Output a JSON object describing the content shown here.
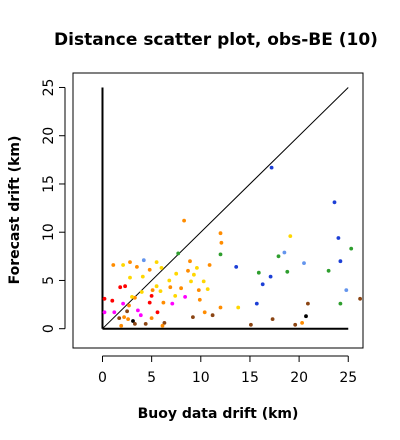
{
  "chart_data": {
    "type": "scatter",
    "title": "Distance scatter plot, obs-BE (10)",
    "xlabel": "Buoy data drift (km)",
    "ylabel": "Forecast drift (km)",
    "xlim": [
      -3,
      26.5
    ],
    "ylim": [
      -2,
      26.5
    ],
    "x_ticks": [
      "0",
      "5",
      "10",
      "15",
      "20",
      "25"
    ],
    "x_tick_values": [
      0,
      5,
      10,
      15,
      20,
      25
    ],
    "y_ticks": [
      "0",
      "5",
      "10",
      "15",
      "20",
      "25"
    ],
    "y_tick_values": [
      0,
      5,
      10,
      15,
      20,
      25
    ],
    "grid": false,
    "reference_lines": [
      {
        "kind": "diagonal",
        "from": [
          0,
          0
        ],
        "to": [
          25,
          25
        ],
        "color": "#000000"
      },
      {
        "kind": "vertical",
        "from": [
          0,
          0
        ],
        "to": [
          0,
          25
        ],
        "color": "#000000"
      },
      {
        "kind": "horizontal",
        "from": [
          0,
          0
        ],
        "to": [
          25,
          0
        ],
        "color": "#000000"
      }
    ],
    "points": [
      {
        "x": 17.2,
        "y": 16.7,
        "color": "#1c3fd6"
      },
      {
        "x": 23.6,
        "y": 13.1,
        "color": "#1c3fd6"
      },
      {
        "x": 24.0,
        "y": 9.4,
        "color": "#1c3fd6"
      },
      {
        "x": 24.2,
        "y": 7.0,
        "color": "#1c3fd6"
      },
      {
        "x": 25.3,
        "y": 8.3,
        "color": "#2e9e2e"
      },
      {
        "x": 23.0,
        "y": 6.0,
        "color": "#2e9e2e"
      },
      {
        "x": 24.8,
        "y": 4.0,
        "color": "#6495ed"
      },
      {
        "x": 24.2,
        "y": 2.6,
        "color": "#2e9e2e"
      },
      {
        "x": 20.5,
        "y": 6.8,
        "color": "#6495ed"
      },
      {
        "x": 19.1,
        "y": 9.6,
        "color": "#ffd700"
      },
      {
        "x": 18.5,
        "y": 7.9,
        "color": "#6495ed"
      },
      {
        "x": 17.9,
        "y": 7.5,
        "color": "#2e9e2e"
      },
      {
        "x": 18.8,
        "y": 5.9,
        "color": "#2e9e2e"
      },
      {
        "x": 16.3,
        "y": 4.6,
        "color": "#1c3fd6"
      },
      {
        "x": 15.9,
        "y": 5.8,
        "color": "#2e9e2e"
      },
      {
        "x": 17.1,
        "y": 5.4,
        "color": "#1c3fd6"
      },
      {
        "x": 15.7,
        "y": 2.6,
        "color": "#1c3fd6"
      },
      {
        "x": 13.6,
        "y": 6.4,
        "color": "#1c3fd6"
      },
      {
        "x": 13.8,
        "y": 2.2,
        "color": "#ffd700"
      },
      {
        "x": 12.0,
        "y": 9.9,
        "color": "#ff8c00"
      },
      {
        "x": 12.1,
        "y": 8.9,
        "color": "#ff8c00"
      },
      {
        "x": 12.0,
        "y": 7.7,
        "color": "#2e9e2e"
      },
      {
        "x": 10.9,
        "y": 6.6,
        "color": "#ff8c00"
      },
      {
        "x": 10.3,
        "y": 4.9,
        "color": "#ffd700"
      },
      {
        "x": 10.7,
        "y": 4.1,
        "color": "#ffd700"
      },
      {
        "x": 8.3,
        "y": 11.2,
        "color": "#ff8c00"
      },
      {
        "x": 7.7,
        "y": 7.8,
        "color": "#2e9e2e"
      },
      {
        "x": 8.9,
        "y": 7.0,
        "color": "#ff8c00"
      },
      {
        "x": 9.6,
        "y": 6.3,
        "color": "#ffd700"
      },
      {
        "x": 8.7,
        "y": 6.0,
        "color": "#ff8c00"
      },
      {
        "x": 7.5,
        "y": 5.7,
        "color": "#ffd700"
      },
      {
        "x": 6.8,
        "y": 5.0,
        "color": "#ffd700"
      },
      {
        "x": 9.3,
        "y": 5.6,
        "color": "#ffd700"
      },
      {
        "x": 9.0,
        "y": 4.9,
        "color": "#ffd700"
      },
      {
        "x": 8.0,
        "y": 4.2,
        "color": "#ff8c00"
      },
      {
        "x": 9.8,
        "y": 4.0,
        "color": "#ff8c00"
      },
      {
        "x": 7.4,
        "y": 3.4,
        "color": "#ffd700"
      },
      {
        "x": 8.4,
        "y": 3.3,
        "color": "#ff00ff"
      },
      {
        "x": 7.1,
        "y": 2.6,
        "color": "#ff00ff"
      },
      {
        "x": 9.9,
        "y": 3.0,
        "color": "#ff8c00"
      },
      {
        "x": 10.4,
        "y": 1.7,
        "color": "#ff8c00"
      },
      {
        "x": 9.2,
        "y": 1.2,
        "color": "#8b4513"
      },
      {
        "x": 11.2,
        "y": 1.4,
        "color": "#8b4513"
      },
      {
        "x": 6.0,
        "y": 6.3,
        "color": "#ffd700"
      },
      {
        "x": 5.5,
        "y": 6.9,
        "color": "#ffd700"
      },
      {
        "x": 4.8,
        "y": 6.1,
        "color": "#ff8c00"
      },
      {
        "x": 4.1,
        "y": 5.4,
        "color": "#ffd700"
      },
      {
        "x": 3.5,
        "y": 6.4,
        "color": "#ff8c00"
      },
      {
        "x": 4.2,
        "y": 7.1,
        "color": "#6495ed"
      },
      {
        "x": 2.8,
        "y": 6.9,
        "color": "#ff8c00"
      },
      {
        "x": 1.1,
        "y": 6.6,
        "color": "#ff8c00"
      },
      {
        "x": 2.1,
        "y": 6.6,
        "color": "#ffd700"
      },
      {
        "x": 2.8,
        "y": 5.3,
        "color": "#ffd700"
      },
      {
        "x": 5.5,
        "y": 4.4,
        "color": "#ffd700"
      },
      {
        "x": 6.9,
        "y": 4.3,
        "color": "#ff8c00"
      },
      {
        "x": 5.1,
        "y": 4.0,
        "color": "#ff8c00"
      },
      {
        "x": 4.0,
        "y": 3.8,
        "color": "#ffd700"
      },
      {
        "x": 3.3,
        "y": 3.2,
        "color": "#ff8c00"
      },
      {
        "x": 1.8,
        "y": 4.3,
        "color": "#ff0000"
      },
      {
        "x": 2.3,
        "y": 4.4,
        "color": "#ff0000"
      },
      {
        "x": 0.2,
        "y": 3.1,
        "color": "#ff0000"
      },
      {
        "x": 1.0,
        "y": 2.9,
        "color": "#ff0000"
      },
      {
        "x": 2.1,
        "y": 2.6,
        "color": "#ff00ff"
      },
      {
        "x": 2.7,
        "y": 2.4,
        "color": "#ff8c00"
      },
      {
        "x": 3.0,
        "y": 3.3,
        "color": "#ffd700"
      },
      {
        "x": 5.0,
        "y": 3.4,
        "color": "#ff0000"
      },
      {
        "x": 5.9,
        "y": 3.9,
        "color": "#ffd700"
      },
      {
        "x": 4.8,
        "y": 2.7,
        "color": "#ff0000"
      },
      {
        "x": 6.2,
        "y": 2.7,
        "color": "#ff8c00"
      },
      {
        "x": 3.6,
        "y": 1.9,
        "color": "#ff00ff"
      },
      {
        "x": 3.9,
        "y": 1.4,
        "color": "#ff00ff"
      },
      {
        "x": 1.2,
        "y": 1.7,
        "color": "#ff00ff"
      },
      {
        "x": 0.2,
        "y": 1.7,
        "color": "#ff00ff"
      },
      {
        "x": 1.7,
        "y": 1.1,
        "color": "#8b4513"
      },
      {
        "x": 2.2,
        "y": 1.2,
        "color": "#ff8c00"
      },
      {
        "x": 2.6,
        "y": 1.0,
        "color": "#ff8c00"
      },
      {
        "x": 3.1,
        "y": 0.8,
        "color": "#000000"
      },
      {
        "x": 3.3,
        "y": 0.5,
        "color": "#8b4513"
      },
      {
        "x": 4.4,
        "y": 0.5,
        "color": "#8b4513"
      },
      {
        "x": 5.6,
        "y": 1.7,
        "color": "#ff0000"
      },
      {
        "x": 5.0,
        "y": 1.1,
        "color": "#ff8c00"
      },
      {
        "x": 6.3,
        "y": 0.6,
        "color": "#8b4513"
      },
      {
        "x": 6.1,
        "y": 0.3,
        "color": "#ff8c00"
      },
      {
        "x": 1.9,
        "y": 0.3,
        "color": "#ff8c00"
      },
      {
        "x": 2.5,
        "y": 1.8,
        "color": "#8b4513"
      },
      {
        "x": 12.0,
        "y": 2.2,
        "color": "#ff8c00"
      },
      {
        "x": 15.1,
        "y": 0.4,
        "color": "#8b4513"
      },
      {
        "x": 17.3,
        "y": 1.0,
        "color": "#8b4513"
      },
      {
        "x": 19.6,
        "y": 0.4,
        "color": "#8b4513"
      },
      {
        "x": 20.3,
        "y": 0.6,
        "color": "#ff8c00"
      },
      {
        "x": 20.7,
        "y": 1.3,
        "color": "#000000"
      },
      {
        "x": 20.9,
        "y": 2.6,
        "color": "#8b4513"
      },
      {
        "x": 26.2,
        "y": 3.1,
        "color": "#8b4513"
      }
    ]
  }
}
